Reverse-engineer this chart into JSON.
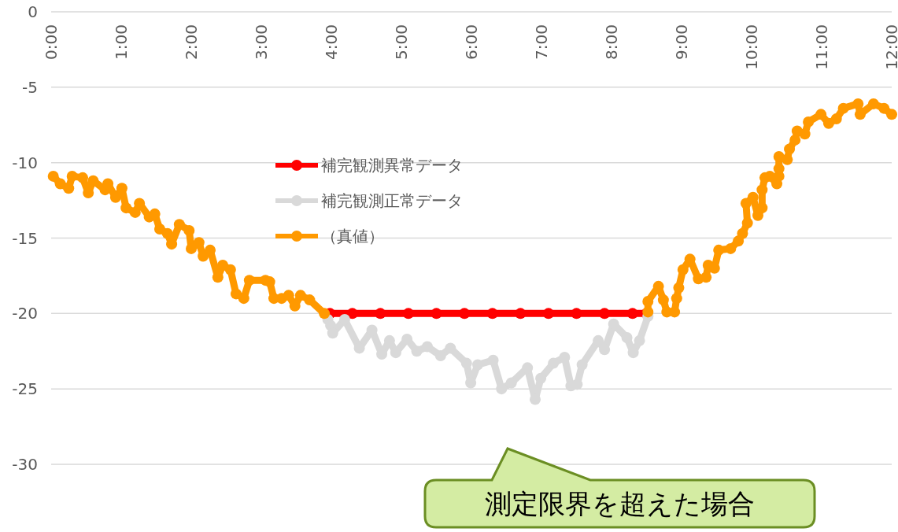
{
  "chart_data": {
    "type": "line",
    "xlim": [
      0,
      12
    ],
    "xticks": [
      {
        "value": 0,
        "label": "0:00"
      },
      {
        "value": 1,
        "label": "1:00"
      },
      {
        "value": 2,
        "label": "2:00"
      },
      {
        "value": 3,
        "label": "3:00"
      },
      {
        "value": 4,
        "label": "4:00"
      },
      {
        "value": 5,
        "label": "5:00"
      },
      {
        "value": 6,
        "label": "6:00"
      },
      {
        "value": 7,
        "label": "7:00"
      },
      {
        "value": 8,
        "label": "8:00"
      },
      {
        "value": 9,
        "label": "9:00"
      },
      {
        "value": 10,
        "label": "10:00"
      },
      {
        "value": 11,
        "label": "11:00"
      },
      {
        "value": 12,
        "label": "12:00"
      }
    ],
    "ylim": [
      -30,
      0
    ],
    "yticks": [
      0,
      -5,
      -10,
      -15,
      -20,
      -25,
      -30
    ],
    "grid": "y",
    "legend": "top left",
    "marker": "circle",
    "line_style": "solid",
    "series": [
      {
        "name": "補完観測異常データ",
        "color": "#ff0000",
        "x": [
          3.98,
          4.3,
          4.7,
          5.1,
          5.5,
          5.9,
          6.3,
          6.7,
          7.1,
          7.5,
          7.9,
          8.3,
          8.5
        ],
        "values": [
          -20.0,
          -20.0,
          -20.0,
          -20.0,
          -20.0,
          -20.0,
          -20.0,
          -20.0,
          -20.0,
          -20.0,
          -20.0,
          -20.0,
          -20.0
        ]
      },
      {
        "name": "補完観測正常データ",
        "color": "#d9d9d9",
        "x": [
          3.95,
          3.99,
          4.02,
          4.19,
          4.4,
          4.58,
          4.72,
          4.83,
          4.92,
          5.08,
          5.22,
          5.37,
          5.56,
          5.7,
          5.93,
          5.99,
          6.09,
          6.31,
          6.43,
          6.57,
          6.8,
          6.91,
          6.99,
          7.17,
          7.33,
          7.42,
          7.51,
          7.58,
          7.81,
          7.9,
          8.03,
          8.22,
          8.31,
          8.4,
          8.52
        ],
        "values": [
          -20.4,
          -20.8,
          -21.3,
          -20.4,
          -22.3,
          -21.1,
          -22.7,
          -21.8,
          -22.6,
          -21.7,
          -22.5,
          -22.2,
          -22.8,
          -22.3,
          -23.3,
          -24.6,
          -23.4,
          -23.1,
          -25.0,
          -24.6,
          -23.6,
          -25.7,
          -24.3,
          -23.3,
          -22.9,
          -24.8,
          -24.7,
          -23.4,
          -21.8,
          -22.4,
          -20.7,
          -21.6,
          -22.6,
          -21.8,
          -20.2
        ]
      },
      {
        "name": "（真値）",
        "color": "#ff9900",
        "x": [
          0.03,
          0.13,
          0.25,
          0.3,
          0.45,
          0.53,
          0.6,
          0.77,
          0.81,
          0.92,
          1.01,
          1.07,
          1.2,
          1.26,
          1.4,
          1.48,
          1.55,
          1.66,
          1.72,
          1.83,
          1.97,
          2.0,
          2.11,
          2.17,
          2.27,
          2.38,
          2.45,
          2.56,
          2.64,
          2.75,
          2.83,
          3.06,
          3.12,
          3.18,
          3.29,
          3.39,
          3.48,
          3.56,
          3.69,
          3.9,
          null,
          8.52,
          8.52,
          8.67,
          8.74,
          8.79,
          8.9,
          8.93,
          8.96,
          9.02,
          9.12,
          9.24,
          9.35,
          9.38,
          9.47,
          9.53,
          9.7,
          9.81,
          9.87,
          9.94,
          9.92,
          10.02,
          10.09,
          10.15,
          10.15,
          10.19,
          10.26,
          10.36,
          10.39,
          10.39,
          10.39,
          10.51,
          10.54,
          10.62,
          10.65,
          10.76,
          10.81,
          10.99,
          11.1,
          11.21,
          11.31,
          11.52,
          11.55,
          11.74,
          11.89,
          12.0
        ],
        "values": [
          -10.9,
          -11.4,
          -11.7,
          -10.9,
          -11.0,
          -12.0,
          -11.2,
          -11.8,
          -11.4,
          -12.3,
          -11.7,
          -13.0,
          -13.3,
          -12.7,
          -13.6,
          -13.4,
          -14.4,
          -14.7,
          -15.4,
          -14.1,
          -14.5,
          -15.7,
          -15.3,
          -16.2,
          -15.8,
          -17.6,
          -16.8,
          -17.1,
          -18.7,
          -19.0,
          -17.8,
          -17.8,
          -17.9,
          -19.0,
          -19.0,
          -18.8,
          -19.5,
          -18.8,
          -19.1,
          -20.0,
          null,
          -19.9,
          -19.2,
          -18.2,
          -19.1,
          -19.9,
          -19.9,
          -19.0,
          -18.3,
          -17.1,
          -16.4,
          -17.7,
          -17.6,
          -16.8,
          -17.0,
          -15.8,
          -15.7,
          -15.2,
          -14.7,
          -14.0,
          -12.7,
          -12.3,
          -13.5,
          -13.0,
          -11.8,
          -11.0,
          -10.9,
          -11.4,
          -10.9,
          -10.4,
          -9.6,
          -9.8,
          -9.1,
          -8.5,
          -7.9,
          -8.1,
          -7.3,
          -6.8,
          -7.4,
          -7.1,
          -6.4,
          -6.1,
          -6.8,
          -6.1,
          -6.4,
          -6.8
        ]
      }
    ],
    "annotations": [
      "測定限界を超えた場合"
    ]
  }
}
